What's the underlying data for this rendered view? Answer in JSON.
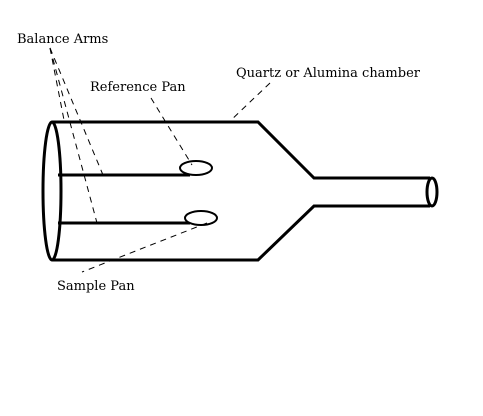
{
  "labels": {
    "balance_arms": "Balance Arms",
    "reference_pan": "Reference Pan",
    "chamber": "Quartz or Alumina chamber",
    "sample_pan": "Sample Pan"
  }
}
